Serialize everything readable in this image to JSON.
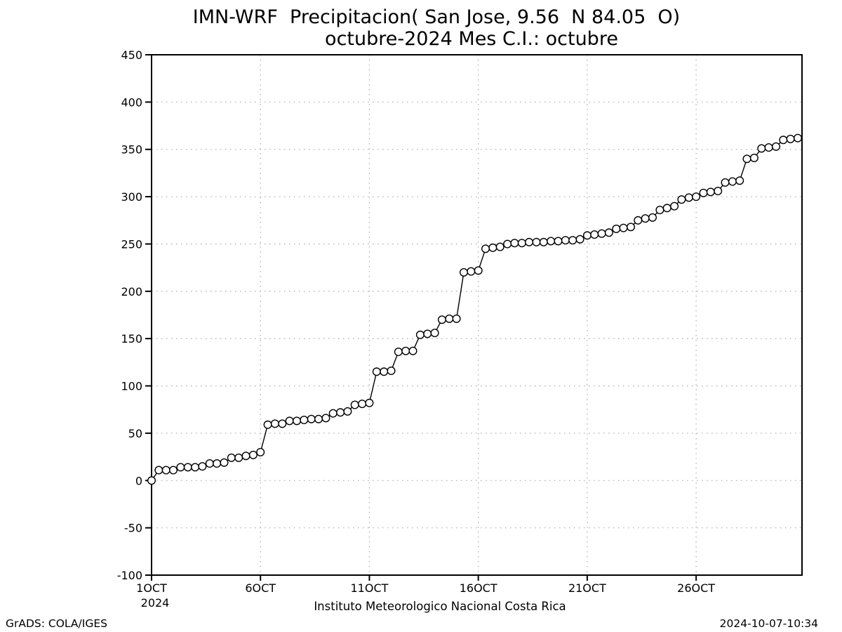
{
  "footer": {
    "left": "GrADS: COLA/IGES",
    "right": "2024-10-07-10:34"
  },
  "chart_data": {
    "type": "line",
    "marker": "open-circle",
    "title": "IMN-WRF  Precipitacion( San Jose, 9.56  N 84.05  O)",
    "subtitle": "octubre-2024 Mes C.I.: octubre",
    "xlabel": "Instituto Meteorologico Nacional Costa Rica",
    "ylabel": "",
    "grid": "dotted",
    "legend": "none",
    "colors": {
      "line": "#000000",
      "marker_fill": "#ffffff",
      "grid": "#b0b0b0",
      "frame": "#000000",
      "background": "#ffffff"
    },
    "ylim": [
      -100,
      450
    ],
    "y_ticks": [
      450,
      400,
      350,
      300,
      250,
      200,
      150,
      100,
      50,
      0,
      -50,
      -100
    ],
    "xlim_days": [
      0,
      29.86
    ],
    "x_ticks": [
      {
        "day": 0,
        "label": "1OCT",
        "sublabel": "2024"
      },
      {
        "day": 5,
        "label": "6OCT"
      },
      {
        "day": 10,
        "label": "11OCT"
      },
      {
        "day": 15,
        "label": "16OCT"
      },
      {
        "day": 20,
        "label": "21OCT"
      },
      {
        "day": 25,
        "label": "26OCT"
      }
    ],
    "series": [
      {
        "name": "cumulative-precipitation",
        "x_days": [
          0,
          0.333,
          0.667,
          1,
          1.333,
          1.667,
          2,
          2.333,
          2.667,
          3,
          3.333,
          3.667,
          4,
          4.333,
          4.667,
          5,
          5.333,
          5.667,
          6,
          6.333,
          6.667,
          7,
          7.333,
          7.667,
          8,
          8.333,
          8.667,
          9,
          9.333,
          9.667,
          10,
          10.333,
          10.667,
          11,
          11.333,
          11.667,
          12,
          12.333,
          12.667,
          13,
          13.333,
          13.667,
          14,
          14.333,
          14.667,
          15,
          15.333,
          15.667,
          16,
          16.333,
          16.667,
          17,
          17.333,
          17.667,
          18,
          18.333,
          18.667,
          19,
          19.333,
          19.667,
          20,
          20.333,
          20.667,
          21,
          21.333,
          21.667,
          22,
          22.333,
          22.667,
          23,
          23.333,
          23.667,
          24,
          24.333,
          24.667,
          25,
          25.333,
          25.667,
          26,
          26.333,
          26.667,
          27,
          27.333,
          27.667,
          28,
          28.333,
          28.667,
          29,
          29.333,
          29.667
        ],
        "values": [
          0,
          11,
          11,
          11,
          14,
          14,
          14,
          15,
          18,
          18,
          19,
          24,
          24,
          26,
          27,
          30,
          59,
          60,
          60,
          63,
          63,
          64,
          65,
          65,
          66,
          71,
          72,
          73,
          80,
          81,
          82,
          115,
          115,
          116,
          136,
          137,
          137,
          154,
          155,
          156,
          170,
          171,
          171,
          220,
          221,
          222,
          245,
          246,
          247,
          250,
          251,
          251,
          252,
          252,
          252,
          253,
          253,
          254,
          254,
          255,
          259,
          260,
          261,
          262,
          266,
          267,
          268,
          275,
          277,
          278,
          286,
          288,
          290,
          297,
          299,
          300,
          304,
          305,
          306,
          315,
          316,
          317,
          340,
          341,
          351,
          352,
          353,
          360,
          361,
          362
        ]
      }
    ]
  }
}
